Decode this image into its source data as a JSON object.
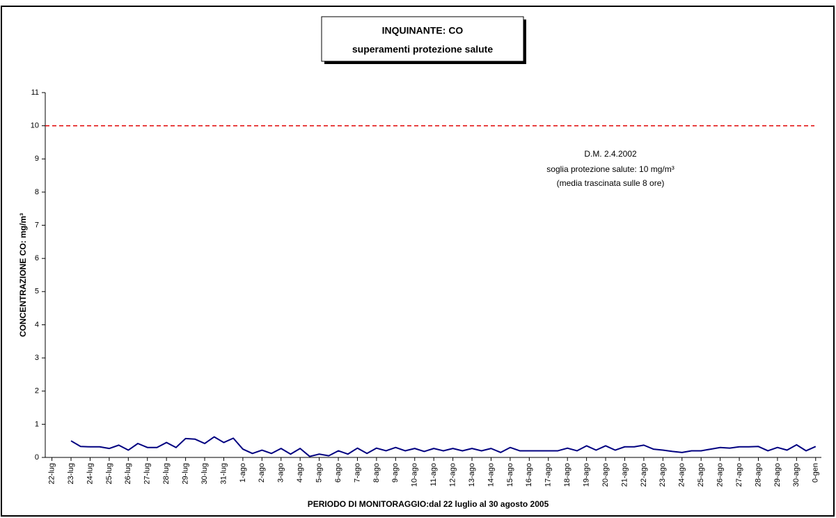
{
  "chart_data": {
    "type": "line",
    "title": "INQUINANTE: CO",
    "subtitle": "superamenti protezione salute",
    "ylabel": "CONCENTRAZIONE CO: mg/m³",
    "xlabel": "PERIODO DI MONITORAGGIO:dal 22 luglio al 30 agosto 2005",
    "annotation": [
      "D.M. 2.4.2002",
      "soglia protezione salute: 10 mg/m³",
      "(media trascinata sulle 8 ore)"
    ],
    "threshold": 10,
    "threshold_color": "#e00000",
    "xlim": [
      -0.35,
      40.3
    ],
    "xticks": [
      {
        "value": 0,
        "label": "22-lug"
      },
      {
        "value": 1,
        "label": "23-lug"
      },
      {
        "value": 2,
        "label": "24-lug"
      },
      {
        "value": 3,
        "label": "25-lug"
      },
      {
        "value": 4,
        "label": "26-lug"
      },
      {
        "value": 5,
        "label": "27-lug"
      },
      {
        "value": 6,
        "label": "28-lug"
      },
      {
        "value": 7,
        "label": "29-lug"
      },
      {
        "value": 8,
        "label": "30-lug"
      },
      {
        "value": 9,
        "label": "31-lug"
      },
      {
        "value": 10,
        "label": "1-ago"
      },
      {
        "value": 11,
        "label": "2-ago"
      },
      {
        "value": 12,
        "label": "3-ago"
      },
      {
        "value": 13,
        "label": "4-ago"
      },
      {
        "value": 14,
        "label": "5-ago"
      },
      {
        "value": 15,
        "label": "6-ago"
      },
      {
        "value": 16,
        "label": "7-ago"
      },
      {
        "value": 17,
        "label": "8-ago"
      },
      {
        "value": 18,
        "label": "9-ago"
      },
      {
        "value": 19,
        "label": "10-ago"
      },
      {
        "value": 20,
        "label": "11-ago"
      },
      {
        "value": 21,
        "label": "12-ago"
      },
      {
        "value": 22,
        "label": "13-ago"
      },
      {
        "value": 23,
        "label": "14-ago"
      },
      {
        "value": 24,
        "label": "15-ago"
      },
      {
        "value": 25,
        "label": "16-ago"
      },
      {
        "value": 26,
        "label": "17-ago"
      },
      {
        "value": 27,
        "label": "18-ago"
      },
      {
        "value": 28,
        "label": "19-ago"
      },
      {
        "value": 29,
        "label": "20-ago"
      },
      {
        "value": 30,
        "label": "21-ago"
      },
      {
        "value": 31,
        "label": "22-ago"
      },
      {
        "value": 32,
        "label": "23-ago"
      },
      {
        "value": 33,
        "label": "24-ago"
      },
      {
        "value": 34,
        "label": "25-ago"
      },
      {
        "value": 35,
        "label": "26-ago"
      },
      {
        "value": 36,
        "label": "27-ago"
      },
      {
        "value": 37,
        "label": "28-ago"
      },
      {
        "value": 38,
        "label": "29-ago"
      },
      {
        "value": 39,
        "label": "30-ago"
      },
      {
        "value": 40,
        "label": "0-gen"
      }
    ],
    "ylim": [
      0,
      11
    ],
    "yticks": [
      0,
      1,
      2,
      3,
      4,
      5,
      6,
      7,
      8,
      9,
      10,
      11
    ],
    "series": [
      {
        "color": "#000080",
        "x": [
          1,
          1.5,
          2,
          2.5,
          3,
          3.5,
          4,
          4.5,
          5,
          5.5,
          6,
          6.5,
          7,
          7.5,
          8,
          8.5,
          9,
          9.5,
          10,
          10.5,
          11,
          11.5,
          12,
          12.5,
          13,
          13.5,
          14,
          14.5,
          15,
          15.5,
          16,
          16.5,
          17,
          17.5,
          18,
          18.5,
          19,
          19.5,
          20,
          20.5,
          21,
          21.5,
          22,
          22.5,
          23,
          23.5,
          24,
          24.5,
          25,
          25.5,
          26,
          26.5,
          27,
          27.5,
          28,
          28.5,
          29,
          29.5,
          30,
          30.5,
          31,
          31.5,
          32,
          32.5,
          33,
          33.5,
          34,
          34.5,
          35,
          35.5,
          36,
          36.5,
          37,
          37.5,
          38,
          38.5,
          39,
          39.5,
          40
        ],
        "values": [
          0.5,
          0.33,
          0.32,
          0.32,
          0.27,
          0.37,
          0.22,
          0.42,
          0.3,
          0.3,
          0.45,
          0.3,
          0.57,
          0.55,
          0.42,
          0.62,
          0.45,
          0.58,
          0.25,
          0.12,
          0.22,
          0.12,
          0.27,
          0.1,
          0.27,
          0.03,
          0.1,
          0.05,
          0.2,
          0.1,
          0.28,
          0.12,
          0.28,
          0.2,
          0.3,
          0.2,
          0.27,
          0.18,
          0.27,
          0.2,
          0.27,
          0.2,
          0.27,
          0.2,
          0.27,
          0.15,
          0.3,
          0.2,
          0.2,
          0.2,
          0.2,
          0.2,
          0.28,
          0.2,
          0.35,
          0.22,
          0.35,
          0.22,
          0.32,
          0.32,
          0.37,
          0.25,
          0.22,
          0.18,
          0.15,
          0.2,
          0.2,
          0.25,
          0.3,
          0.28,
          0.32,
          0.32,
          0.33,
          0.2,
          0.3,
          0.22,
          0.38,
          0.2,
          0.33
        ]
      }
    ]
  }
}
